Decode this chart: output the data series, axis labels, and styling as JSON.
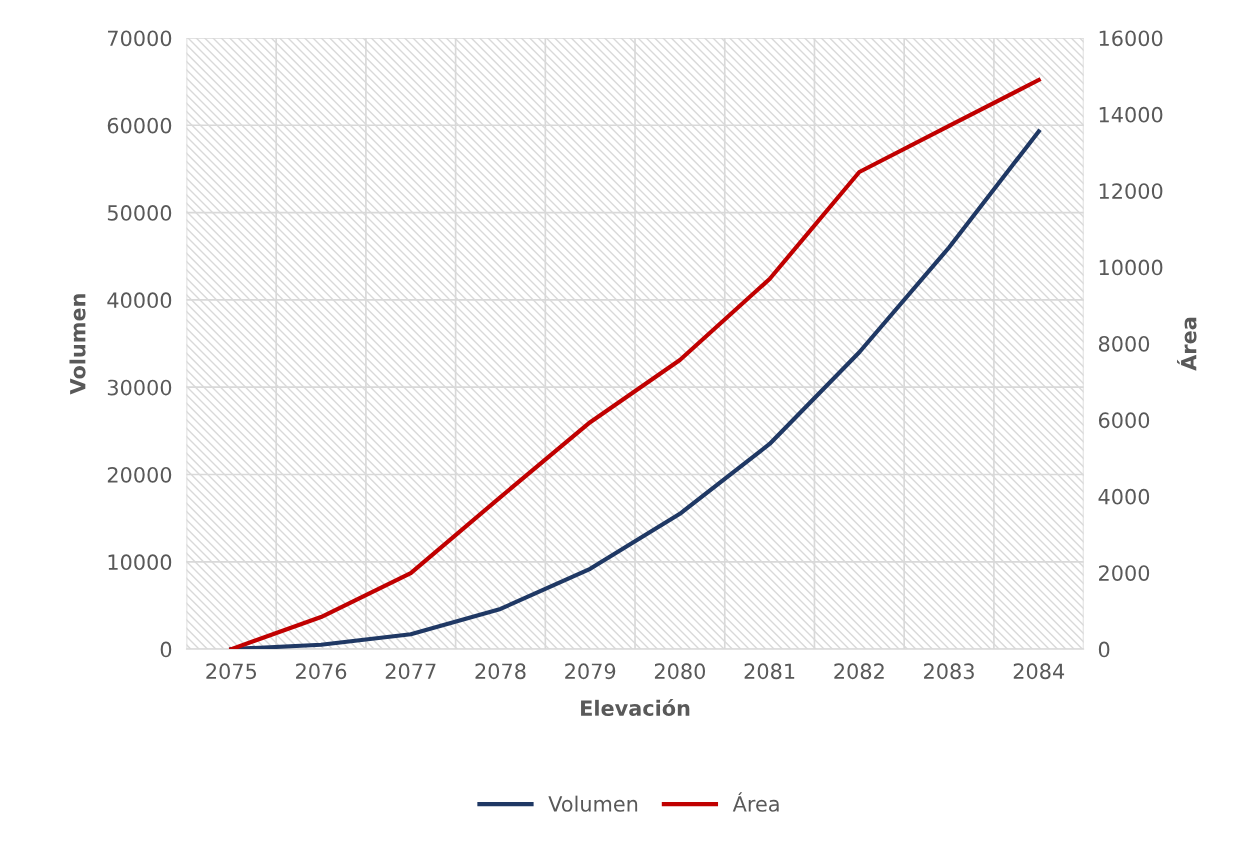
{
  "chart_data": {
    "type": "line",
    "xlabel": "Elevación",
    "ylabel": "Volumen",
    "y2label": "Área",
    "categories": [
      "2075",
      "2076",
      "2077",
      "2078",
      "2079",
      "2080",
      "2081",
      "2082",
      "2083",
      "2084"
    ],
    "series": [
      {
        "name": "Volumen",
        "color": "#1f3864",
        "values": [
          0,
          500,
          1700,
          4600,
          9200,
          15500,
          23500,
          34000,
          46000,
          59300
        ]
      },
      {
        "name": "Área",
        "color": "#c00000",
        "axis": "y2",
        "values": [
          0,
          840,
          1990,
          3980,
          5940,
          7570,
          9690,
          12490,
          13700,
          14900
        ]
      }
    ],
    "ylim": [
      0,
      70000
    ],
    "yticks": [
      0,
      10000,
      20000,
      30000,
      40000,
      50000,
      60000,
      70000
    ],
    "y2lim": [
      0,
      16000
    ],
    "y2ticks": [
      0,
      2000,
      4000,
      6000,
      8000,
      10000,
      12000,
      14000,
      16000
    ],
    "grid": true,
    "legend": "bottom",
    "marker": "none",
    "line_style": "solid"
  }
}
